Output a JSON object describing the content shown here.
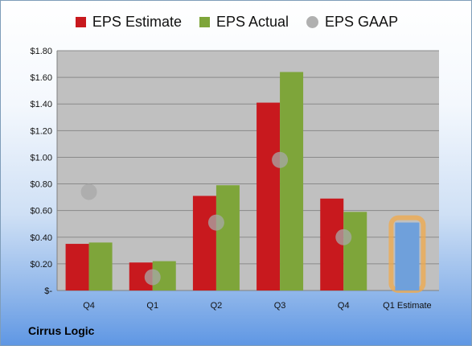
{
  "legend": {
    "estimate_label": "EPS Estimate",
    "actual_label": "EPS Actual",
    "gaap_label": "EPS GAAP"
  },
  "company": "Cirrus Logic",
  "colors": {
    "estimate": "#c8191e",
    "actual": "#7ea53a",
    "gaap": "#a8a8a8",
    "forecast": "#6fa0db",
    "forecast_outline": "#f2a94a",
    "plot_bg": "#c0c0c0",
    "grid": "#8a8a8a"
  },
  "chart_data": {
    "type": "bar",
    "categories": [
      "Q4",
      "Q1",
      "Q2",
      "Q3",
      "Q4",
      "Q1 Estimate"
    ],
    "series": [
      {
        "name": "EPS Estimate",
        "values": [
          0.35,
          0.21,
          0.71,
          1.41,
          0.69,
          null
        ]
      },
      {
        "name": "EPS Actual",
        "values": [
          0.36,
          0.22,
          0.79,
          1.64,
          0.59,
          null
        ]
      },
      {
        "name": "EPS GAAP",
        "type": "scatter",
        "values": [
          0.74,
          0.1,
          0.51,
          0.98,
          0.4,
          null
        ]
      }
    ],
    "forecast": {
      "category": "Q1 Estimate",
      "value": 0.51
    },
    "y_ticks": [
      "$-",
      "$0.20",
      "$0.40",
      "$0.60",
      "$0.80",
      "$1.00",
      "$1.20",
      "$1.40",
      "$1.60",
      "$1.80"
    ],
    "ylim": [
      0,
      1.8
    ],
    "grid": true,
    "legend_position": "top"
  }
}
